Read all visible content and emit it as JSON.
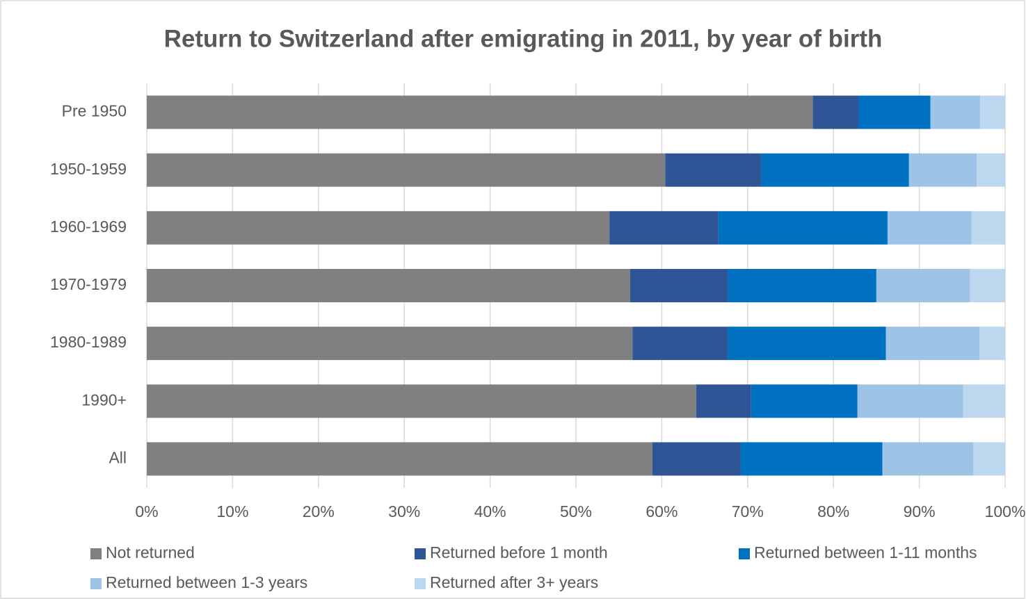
{
  "chart_data": {
    "type": "stacked_barh",
    "title": "Return to Switzerland after emigrating in 2011, by year of birth",
    "categories": [
      "Pre 1950",
      "1950-1959",
      "1960-1969",
      "1970-1979",
      "1980-1989",
      "1990+",
      "All"
    ],
    "series": [
      {
        "name": "Not returned",
        "color": "#808080",
        "values": [
          77.6,
          60.4,
          53.9,
          56.3,
          56.6,
          64.0,
          58.9
        ]
      },
      {
        "name": "Returned before 1 month",
        "color": "#2f5597",
        "values": [
          5.3,
          11.2,
          12.7,
          11.4,
          11.1,
          6.4,
          10.3
        ]
      },
      {
        "name": "Returned between 1-11 months",
        "color": "#0070c0",
        "values": [
          8.4,
          17.2,
          19.7,
          17.3,
          18.4,
          12.4,
          16.5
        ]
      },
      {
        "name": "Returned between 1-3 years",
        "color": "#9dc3e6",
        "values": [
          5.8,
          7.9,
          9.8,
          10.9,
          10.9,
          12.3,
          10.6
        ]
      },
      {
        "name": "Returned after 3+ years",
        "color": "#bdd7ee",
        "values": [
          2.9,
          3.3,
          3.9,
          4.1,
          3.0,
          4.9,
          3.7
        ]
      }
    ],
    "xlim": [
      0,
      100
    ],
    "xticks": [
      {
        "value": 0,
        "label": "0%"
      },
      {
        "value": 10,
        "label": "10%"
      },
      {
        "value": 20,
        "label": "20%"
      },
      {
        "value": 30,
        "label": "30%"
      },
      {
        "value": 40,
        "label": "40%"
      },
      {
        "value": 50,
        "label": "50%"
      },
      {
        "value": 60,
        "label": "60%"
      },
      {
        "value": 70,
        "label": "70%"
      },
      {
        "value": 80,
        "label": "80%"
      },
      {
        "value": 90,
        "label": "90%"
      },
      {
        "value": 100,
        "label": "100%"
      }
    ],
    "grid": true,
    "legend": "bottom"
  }
}
